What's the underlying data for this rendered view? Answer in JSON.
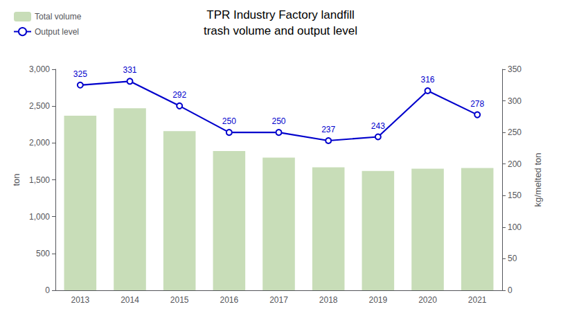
{
  "chart_data": {
    "type": "bar",
    "title": "TPR Industry Factory landfill",
    "subtitle": "trash volume and output level",
    "categories": [
      "2013",
      "2014",
      "2015",
      "2016",
      "2017",
      "2018",
      "2019",
      "2020",
      "2021"
    ],
    "series": [
      {
        "name": "Total volume",
        "type": "bar",
        "color": "#c8ddb8",
        "values": [
          2370,
          2470,
          2160,
          1890,
          1800,
          1670,
          1620,
          1650,
          1660
        ]
      },
      {
        "name": "Output level",
        "type": "line",
        "color": "#0000cc",
        "marker": "circle",
        "axis": "y2",
        "data_labels": true,
        "values": [
          325,
          331,
          292,
          250,
          250,
          237,
          243,
          316,
          278
        ]
      }
    ],
    "ylabel": "ton",
    "y2label": "kg/melted ton",
    "ylim": [
      0,
      3000
    ],
    "yticks": [
      0,
      500,
      {
        "value": 1000,
        "label": "1,000"
      },
      {
        "value": 1500,
        "label": "1,500"
      },
      {
        "value": 2000,
        "label": "2,000"
      },
      {
        "value": 2500,
        "label": "2,500"
      },
      {
        "value": 3000,
        "label": "3,000"
      }
    ],
    "y2lim": [
      0,
      350
    ],
    "y2ticks": [
      0,
      50,
      100,
      150,
      200,
      250,
      300,
      350
    ],
    "legend": "upper left",
    "grid": false
  }
}
